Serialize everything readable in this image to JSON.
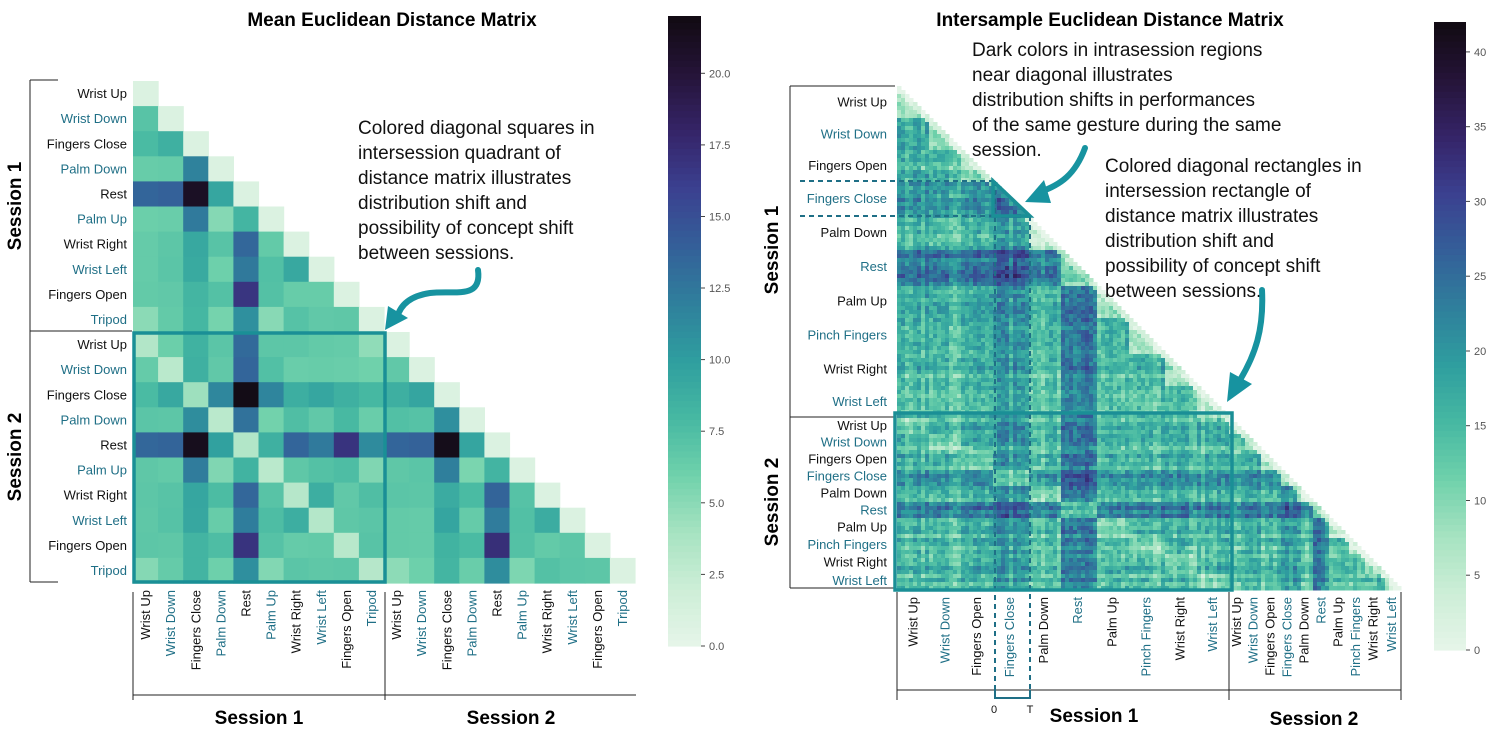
{
  "colors": {
    "label_dark": "#111111",
    "label_teal": "#1f6f86",
    "accent": "#1a8f96",
    "annotation_arrow": "#1793a0",
    "colormap": [
      "#e6f5e9",
      "#cdeed7",
      "#a6e3c1",
      "#6fd1ab",
      "#46b8a2",
      "#2f9e9f",
      "#2f7f9c",
      "#345f99",
      "#3b4090",
      "#352468",
      "#251438",
      "#110b12"
    ]
  },
  "chart_data": [
    {
      "type": "heatmap",
      "title": "Mean Euclidean Distance Matrix",
      "row_group_labels": [
        "Session 1",
        "Session 2"
      ],
      "col_group_labels": [
        "Session 1",
        "Session 2"
      ],
      "row_labels": [
        "Wrist Up",
        "Wrist Down",
        "Fingers Close",
        "Palm Down",
        "Rest",
        "Palm Up",
        "Wrist Right",
        "Wrist Left",
        "Fingers Open",
        "Tripod",
        "Wrist Up",
        "Wrist Down",
        "Fingers Close",
        "Palm Down",
        "Rest",
        "Palm Up",
        "Wrist Right",
        "Wrist Left",
        "Fingers Open",
        "Tripod"
      ],
      "col_labels": [
        "Wrist Up",
        "Wrist Down",
        "Fingers Close",
        "Palm Down",
        "Rest",
        "Palm Up",
        "Wrist Right",
        "Wrist Left",
        "Fingers Open",
        "Tripod",
        "Wrist Up",
        "Wrist Down",
        "Fingers Close",
        "Palm Down",
        "Rest",
        "Palm Up",
        "Wrist Right",
        "Wrist Left",
        "Fingers Open",
        "Tripod"
      ],
      "label_teal_flags": [
        false,
        true,
        false,
        true,
        false,
        true,
        false,
        true,
        false,
        true,
        false,
        true,
        false,
        true,
        false,
        true,
        false,
        true,
        false,
        true
      ],
      "vmin": 0,
      "vmax": 22,
      "colorbar_ticks": [
        "0.0",
        "2.5",
        "5.0",
        "7.5",
        "10.0",
        "12.5",
        "15.0",
        "17.5",
        "20.0"
      ],
      "colorbar_tick_values": [
        0,
        2.5,
        5,
        7.5,
        10,
        12.5,
        15,
        17.5,
        20
      ],
      "gesture_mean_offsets": [
        2,
        2,
        4,
        3,
        8,
        3,
        4,
        3,
        5,
        2
      ],
      "values_lower_triangle": [
        [
          0.9
        ],
        [
          7.1,
          0.9
        ],
        [
          7.8,
          8.6,
          0.9
        ],
        [
          6.4,
          6.5,
          11.8,
          0.9
        ],
        [
          13.6,
          13.9,
          21.0,
          9.4,
          0.9
        ],
        [
          6.2,
          6.3,
          12.3,
          5.2,
          8.2,
          0.9
        ],
        [
          6.5,
          6.9,
          9.2,
          7.1,
          13.5,
          6.6,
          0.9
        ],
        [
          6.5,
          7.0,
          9.1,
          6.1,
          12.4,
          7.4,
          9.2,
          0.9
        ],
        [
          6.6,
          6.7,
          8.2,
          7.3,
          16.8,
          7.3,
          6.4,
          6.4,
          0.9
        ],
        [
          5.0,
          6.6,
          8.1,
          5.8,
          10.9,
          5.1,
          7.2,
          6.7,
          6.8,
          0.9
        ],
        [
          3.4,
          6.2,
          8.5,
          7.0,
          13.3,
          6.9,
          6.9,
          6.6,
          6.5,
          4.8,
          0.9
        ],
        [
          6.5,
          3.0,
          8.6,
          6.7,
          13.6,
          7.4,
          6.3,
          6.4,
          6.3,
          6.0,
          6.7,
          0.9
        ],
        [
          7.8,
          9.2,
          4.3,
          11.5,
          21.8,
          11.6,
          8.8,
          9.4,
          8.6,
          8.0,
          8.7,
          9.5,
          0.9
        ],
        [
          7.0,
          6.9,
          11.1,
          3.0,
          12.8,
          5.9,
          7.5,
          6.7,
          7.9,
          6.3,
          7.4,
          7.2,
          11.0,
          0.9
        ],
        [
          13.5,
          13.7,
          21.4,
          9.8,
          3.4,
          8.6,
          13.6,
          12.3,
          16.9,
          11.2,
          13.6,
          13.8,
          21.6,
          9.5,
          0.9
        ],
        [
          6.8,
          6.6,
          12.2,
          5.4,
          8.4,
          3.0,
          6.8,
          7.3,
          7.6,
          5.4,
          6.8,
          7.0,
          12.0,
          5.6,
          8.3,
          0.9
        ],
        [
          6.9,
          7.1,
          9.4,
          7.7,
          13.5,
          7.1,
          3.2,
          8.8,
          6.7,
          7.5,
          7.0,
          6.9,
          9.0,
          7.8,
          13.7,
          7.2,
          0.9
        ],
        [
          6.8,
          7.2,
          9.3,
          6.4,
          12.1,
          7.6,
          8.8,
          3.3,
          6.8,
          7.0,
          6.6,
          6.5,
          9.5,
          6.5,
          12.2,
          7.4,
          8.9,
          0.9
        ],
        [
          6.9,
          6.8,
          8.3,
          7.6,
          16.9,
          7.2,
          6.5,
          6.6,
          3.1,
          7.1,
          6.6,
          6.5,
          8.4,
          7.8,
          17.2,
          7.3,
          6.6,
          6.9,
          0.9
        ],
        [
          5.2,
          6.5,
          8.3,
          6.1,
          11.0,
          5.3,
          7.0,
          6.8,
          6.9,
          3.2,
          4.9,
          6.1,
          8.2,
          6.3,
          11.1,
          5.5,
          7.3,
          7.0,
          6.9,
          0.9
        ]
      ],
      "annotation": "Colored diagonal squares in intersession quadrant of distance matrix illustrates distribution shift and possibility of concept shift between sessions."
    },
    {
      "type": "heatmap",
      "title": "Intersample Euclidean Distance Matrix",
      "row_group_labels": [
        "Session 1",
        "Session 2"
      ],
      "col_group_labels": [
        "Session 1",
        "Session 2"
      ],
      "row_labels": [
        "Wrist Up",
        "Wrist Down",
        "Fingers Open",
        "Fingers Close",
        "Palm Down",
        "Rest",
        "Palm Up",
        "Pinch Fingers",
        "Wrist Right",
        "Wrist Left",
        "Wrist Up",
        "Wrist Down",
        "Fingers Open",
        "Fingers Close",
        "Palm Down",
        "Rest",
        "Palm Up",
        "Pinch Fingers",
        "Wrist Right",
        "Wrist Left"
      ],
      "col_labels": [
        "Wrist Up",
        "Wrist Down",
        "Fingers Open",
        "Fingers Close",
        "Palm Down",
        "Rest",
        "Palm Up",
        "Pinch Fingers",
        "Wrist Right",
        "Wrist Left",
        "Wrist Up",
        "Wrist Down",
        "Fingers Open",
        "Fingers Close",
        "Palm Down",
        "Rest",
        "Palm Up",
        "Pinch Fingers",
        "Wrist Right",
        "Wrist Left"
      ],
      "label_teal_flags": [
        false,
        true,
        false,
        true,
        false,
        true,
        false,
        true,
        false,
        true,
        false,
        true,
        false,
        true,
        false,
        true,
        false,
        true,
        false,
        true
      ],
      "vmin": 0,
      "vmax": 42,
      "colorbar_ticks": [
        "0",
        "5",
        "10",
        "15",
        "20",
        "25",
        "30",
        "35",
        "40"
      ],
      "colorbar_tick_values": [
        0,
        5,
        10,
        15,
        20,
        25,
        30,
        35,
        40
      ],
      "time_axis_labels": [
        "0",
        "T"
      ],
      "annotations": [
        "Dark colors in intrasession regions near diagonal illustrates distribution shifts in performances of the same gesture during the same session.",
        "Colored diagonal rectangles in intersession rectangle of distance matrix illustrates distribution shift and possibility of concept shift between sessions."
      ]
    }
  ]
}
